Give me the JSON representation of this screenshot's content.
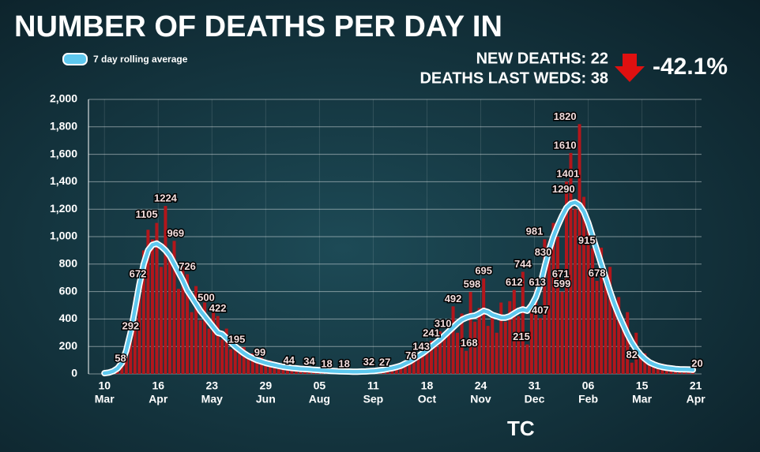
{
  "chart_data": {
    "type": "bar",
    "title": "NUMBER OF DEATHS PER DAY IN",
    "new_deaths": "NEW DEATHS: 22",
    "deaths_last_weds": "DEATHS LAST WEDS: 38",
    "change": "-42.1%",
    "footer": "TC",
    "x": [
      0,
      3,
      6,
      9,
      12,
      15,
      18,
      21,
      24,
      27,
      30,
      33,
      36,
      39,
      42,
      45,
      48,
      51,
      54,
      57,
      60,
      63,
      66,
      69,
      72,
      75,
      78,
      81,
      84,
      87,
      90,
      93,
      96,
      99,
      102,
      105,
      108,
      111,
      114,
      117,
      120,
      123,
      126,
      129,
      132,
      135,
      138,
      141,
      144,
      147,
      150,
      153,
      156,
      159,
      162,
      165,
      168,
      171,
      174,
      177,
      180,
      183,
      186,
      189,
      192,
      195,
      198,
      201,
      204,
      207,
      210,
      213,
      216,
      219,
      222,
      225,
      228,
      231,
      234,
      237,
      240,
      243,
      246,
      249,
      252,
      255,
      258,
      261,
      264,
      267,
      270,
      273,
      276,
      279,
      282,
      285,
      288,
      291,
      294,
      297,
      300,
      303,
      306,
      309,
      312,
      315,
      318,
      321,
      324,
      327,
      330,
      333,
      336,
      339,
      342,
      345,
      348,
      351,
      354,
      357,
      360,
      363,
      366,
      369,
      372,
      375,
      378,
      381,
      384,
      387,
      390,
      393,
      396,
      399,
      402,
      405
    ],
    "series": [
      {
        "type": "bar",
        "color": "#b3161b",
        "values": [
          6,
          12,
          25,
          48,
          90,
          200,
          310,
          560,
          700,
          900,
          1050,
          980,
          1100,
          780,
          1224,
          850,
          969,
          620,
          780,
          726,
          450,
          640,
          390,
          520,
          330,
          470,
          422,
          250,
          330,
          180,
          260,
          150,
          195,
          110,
          150,
          85,
          120,
          70,
          99,
          55,
          75,
          44,
          60,
          36,
          50,
          30,
          45,
          34,
          22,
          36,
          18,
          30,
          16,
          26,
          12,
          18,
          14,
          22,
          10,
          20,
          14,
          32,
          18,
          27,
          30,
          40,
          35,
          55,
          50,
          85,
          76,
          120,
          143,
          130,
          190,
          241,
          200,
          310,
          260,
          380,
          492,
          300,
          440,
          168,
          598,
          380,
          480,
          695,
          350,
          450,
          300,
          520,
          380,
          530,
          612,
          420,
          744,
          215,
          520,
          613,
          407,
          981,
          830,
          1100,
          1000,
          599,
          1401,
          1610,
          1200,
          1820,
          1290,
          1100,
          915,
          678,
          920,
          650,
          780,
          500,
          560,
          380,
          450,
          82,
          300,
          120,
          150,
          100,
          90,
          60,
          75,
          40,
          55,
          30,
          45,
          25,
          35,
          20
        ]
      },
      {
        "type": "line",
        "name": "7 day rolling average",
        "color": "#5ec8ee",
        "values": [
          5,
          10,
          20,
          40,
          80,
          170,
          300,
          470,
          650,
          800,
          900,
          940,
          950,
          930,
          900,
          860,
          800,
          740,
          680,
          610,
          560,
          510,
          460,
          420,
          380,
          340,
          300,
          290,
          260,
          230,
          200,
          175,
          150,
          130,
          115,
          100,
          90,
          80,
          72,
          65,
          58,
          52,
          47,
          43,
          40,
          37,
          35,
          33,
          30,
          28,
          26,
          24,
          22,
          20,
          19,
          18,
          17,
          16,
          16,
          17,
          18,
          20,
          22,
          26,
          30,
          36,
          42,
          50,
          60,
          75,
          90,
          110,
          130,
          150,
          175,
          200,
          225,
          250,
          280,
          310,
          340,
          370,
          395,
          410,
          420,
          425,
          440,
          460,
          450,
          430,
          420,
          410,
          410,
          420,
          440,
          460,
          470,
          460,
          500,
          560,
          650,
          780,
          900,
          1000,
          1080,
          1150,
          1210,
          1240,
          1250,
          1230,
          1180,
          1100,
          1000,
          900,
          800,
          700,
          600,
          510,
          430,
          360,
          290,
          230,
          180,
          140,
          110,
          85,
          70,
          58,
          50,
          44,
          40,
          36,
          34,
          33,
          32,
          30
        ]
      }
    ],
    "annotations": [
      {
        "x": 11,
        "value": 58
      },
      {
        "x": 18,
        "value": 292
      },
      {
        "x": 23,
        "value": 672
      },
      {
        "x": 29,
        "value": 1105
      },
      {
        "x": 42,
        "value": 1224
      },
      {
        "x": 49,
        "value": 969
      },
      {
        "x": 57,
        "value": 726
      },
      {
        "x": 70,
        "value": 500
      },
      {
        "x": 78,
        "value": 422
      },
      {
        "x": 91,
        "value": 195
      },
      {
        "x": 107,
        "value": 99
      },
      {
        "x": 127,
        "value": 44
      },
      {
        "x": 141,
        "value": 34
      },
      {
        "x": 153,
        "value": 18
      },
      {
        "x": 165,
        "value": 18
      },
      {
        "x": 182,
        "value": 32
      },
      {
        "x": 193,
        "value": 27
      },
      {
        "x": 211,
        "value": 76
      },
      {
        "x": 218,
        "value": 143
      },
      {
        "x": 225,
        "value": 241
      },
      {
        "x": 233,
        "value": 310
      },
      {
        "x": 240,
        "value": 492
      },
      {
        "x": 253,
        "value": 598
      },
      {
        "x": 251,
        "value": 168
      },
      {
        "x": 261,
        "value": 695
      },
      {
        "x": 282,
        "value": 612
      },
      {
        "x": 287,
        "value": 215
      },
      {
        "x": 288,
        "value": 744
      },
      {
        "x": 298,
        "value": 613
      },
      {
        "x": 302,
        "value": 830
      },
      {
        "x": 300,
        "value": 407
      },
      {
        "x": 296,
        "value": 981
      },
      {
        "x": 314,
        "value": 671
      },
      {
        "x": 315,
        "value": 599
      },
      {
        "x": 316,
        "value": 1290
      },
      {
        "x": 319,
        "value": 1401
      },
      {
        "x": 317,
        "value": 1610
      },
      {
        "x": 317,
        "value": 1820
      },
      {
        "x": 332,
        "value": 915
      },
      {
        "x": 339,
        "value": 678
      },
      {
        "x": 363,
        "value": 82
      },
      {
        "x": 408,
        "value": 20
      }
    ],
    "xlim": [
      -11,
      411
    ],
    "xticks": [
      {
        "value": 0,
        "label": "10"
      },
      {
        "value": 37,
        "label": "16"
      },
      {
        "value": 74,
        "label": "23"
      },
      {
        "value": 111,
        "label": "29"
      },
      {
        "value": 148,
        "label": "05"
      },
      {
        "value": 185,
        "label": "11"
      },
      {
        "value": 222,
        "label": "18"
      },
      {
        "value": 259,
        "label": "24"
      },
      {
        "value": 296,
        "label": "31"
      },
      {
        "value": 333,
        "label": "06"
      },
      {
        "value": 370,
        "label": "15"
      },
      {
        "value": 407,
        "label": "21"
      }
    ],
    "xtick_months": [
      "Mar",
      "Apr",
      "May",
      "Jun",
      "Aug",
      "Sep",
      "Oct",
      "Nov",
      "Dec",
      "Feb",
      "Mar",
      "Apr"
    ],
    "ylim": [
      0,
      2000
    ],
    "yticks": [
      0,
      200,
      400,
      600,
      800,
      {
        "value": 1000,
        "label": "1,000"
      },
      {
        "value": 1200,
        "label": "1,200"
      },
      {
        "value": 1400,
        "label": "1,400"
      },
      {
        "value": 1600,
        "label": "1,600"
      },
      {
        "value": 1800,
        "label": "1,800"
      },
      {
        "value": 2000,
        "label": "2,000"
      }
    ],
    "grid": true
  }
}
